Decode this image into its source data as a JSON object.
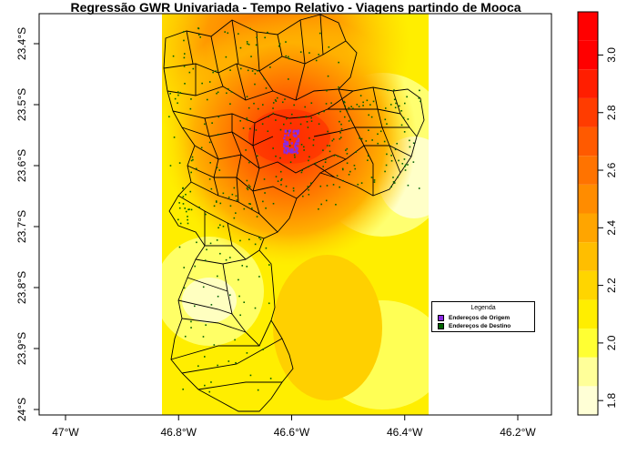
{
  "title": "Regressão GWR Univariada - Tempo Relativo - Viagens partindo de Mooca",
  "legend": {
    "title": "Legenda",
    "items": [
      {
        "label": "Endereços de Origem",
        "color": "#8a2be2"
      },
      {
        "label": "Endereços de Destino",
        "color": "#006400"
      }
    ]
  },
  "chart_data": {
    "type": "heatmap",
    "x_axis": {
      "ticks": [
        -47.0,
        -46.8,
        -46.6,
        -46.4,
        -46.2
      ],
      "tick_labels": [
        "47°W",
        "46.8°W",
        "46.6°W",
        "46.4°W",
        "46.2°W"
      ]
    },
    "y_axis": {
      "ticks": [
        -23.4,
        -23.5,
        -23.6,
        -23.7,
        -23.8,
        -23.9,
        -24.0
      ],
      "tick_labels": [
        "23.4°S",
        "23.5°S",
        "23.6°S",
        "23.7°S",
        "23.8°S",
        "23.9°S",
        "24°S"
      ]
    },
    "colorbar": {
      "ticks": [
        1.8,
        2.0,
        2.2,
        2.4,
        2.6,
        2.8,
        3.0
      ],
      "tick_labels": [
        "1.8",
        "2.0",
        "2.2",
        "2.4",
        "2.6",
        "2.8",
        "3.0"
      ],
      "range": [
        1.75,
        3.15
      ],
      "step": 0.1,
      "colors": [
        "#ffffd6",
        "#ffff99",
        "#ffff33",
        "#ffee00",
        "#ffd500",
        "#ffbe00",
        "#ffa500",
        "#ff8c00",
        "#ff7300",
        "#ff5a00",
        "#ff3c00",
        "#ff1e00",
        "#ff0000",
        "#ff0000"
      ]
    },
    "surface_hotspot": {
      "lon": -46.6,
      "lat": -23.56,
      "peak_value": 3.1
    },
    "background_value": 2.1
  }
}
